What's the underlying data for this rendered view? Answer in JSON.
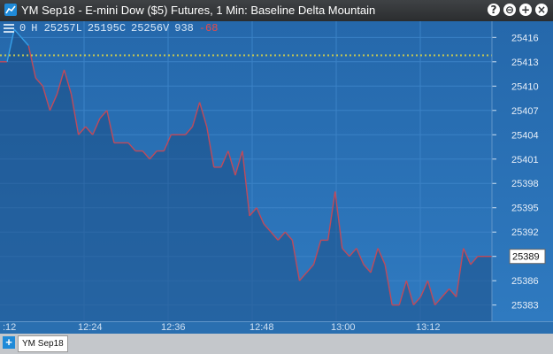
{
  "window": {
    "title": "YM Sep18 - E-mini Dow ($5) Futures, 1 Min: Baseline Delta Mountain",
    "buttons": [
      "?",
      "⊖",
      "+",
      "×"
    ]
  },
  "toolbar": {
    "o": "0",
    "h": "H 25257L",
    "l": "25195C",
    "c": "25256V",
    "v": "938",
    "chg": "-68"
  },
  "price_axis": {
    "ticks": [
      "25416",
      "25413",
      "25410",
      "25407",
      "25404",
      "25401",
      "25398",
      "25395",
      "25392",
      "25389",
      "25386",
      "25383"
    ],
    "last_price": "25389"
  },
  "time_axis": [
    "12:24",
    "12:36",
    "12:48",
    "13:00",
    "13:12"
  ],
  "time_axis_left_partial": ":12",
  "footer": {
    "tab_label": "YM Sep18"
  },
  "colors": {
    "baseline": "#c9c94f",
    "above": "#36a0e8",
    "below": "#c04a5a"
  },
  "chart_data": {
    "type": "area",
    "y_range": [
      25381,
      25418
    ],
    "baseline": 25413.8,
    "x": [
      "12:12",
      "12:13",
      "12:14",
      "12:15",
      "12:16",
      "12:17",
      "12:18",
      "12:19",
      "12:20",
      "12:21",
      "12:22",
      "12:23",
      "12:24",
      "12:25",
      "12:26",
      "12:27",
      "12:28",
      "12:29",
      "12:30",
      "12:31",
      "12:32",
      "12:33",
      "12:34",
      "12:35",
      "12:36",
      "12:37",
      "12:38",
      "12:39",
      "12:40",
      "12:41",
      "12:42",
      "12:43",
      "12:44",
      "12:45",
      "12:46",
      "12:47",
      "12:48",
      "12:49",
      "12:50",
      "12:51",
      "12:52",
      "12:53",
      "12:54",
      "12:55",
      "12:56",
      "12:57",
      "12:58",
      "12:59",
      "13:00",
      "13:01",
      "13:02",
      "13:03",
      "13:04",
      "13:05",
      "13:06",
      "13:07",
      "13:08",
      "13:09",
      "13:10",
      "13:11",
      "13:12",
      "13:13",
      "13:14",
      "13:15",
      "13:16",
      "13:17",
      "13:18",
      "13:19",
      "13:20",
      "13:21"
    ],
    "values": [
      25413,
      25413,
      25417,
      25416,
      25415,
      25411,
      25410,
      25407,
      25409,
      25412,
      25409,
      25404,
      25405,
      25404,
      25406,
      25407,
      25403,
      25403,
      25403,
      25402,
      25402,
      25401,
      25402,
      25402,
      25404,
      25404,
      25404,
      25405,
      25408,
      25405,
      25400,
      25400,
      25402,
      25399,
      25402,
      25394,
      25395,
      25393,
      25392,
      25391,
      25392,
      25391,
      25386,
      25387,
      25388,
      25391,
      25391,
      25397,
      25390,
      25389,
      25390,
      25388,
      25387,
      25390,
      25388,
      25383,
      25383,
      25386,
      25383,
      25384,
      25386,
      25383,
      25384,
      25385,
      25384,
      25390,
      25388,
      25389,
      25389,
      25389
    ]
  }
}
